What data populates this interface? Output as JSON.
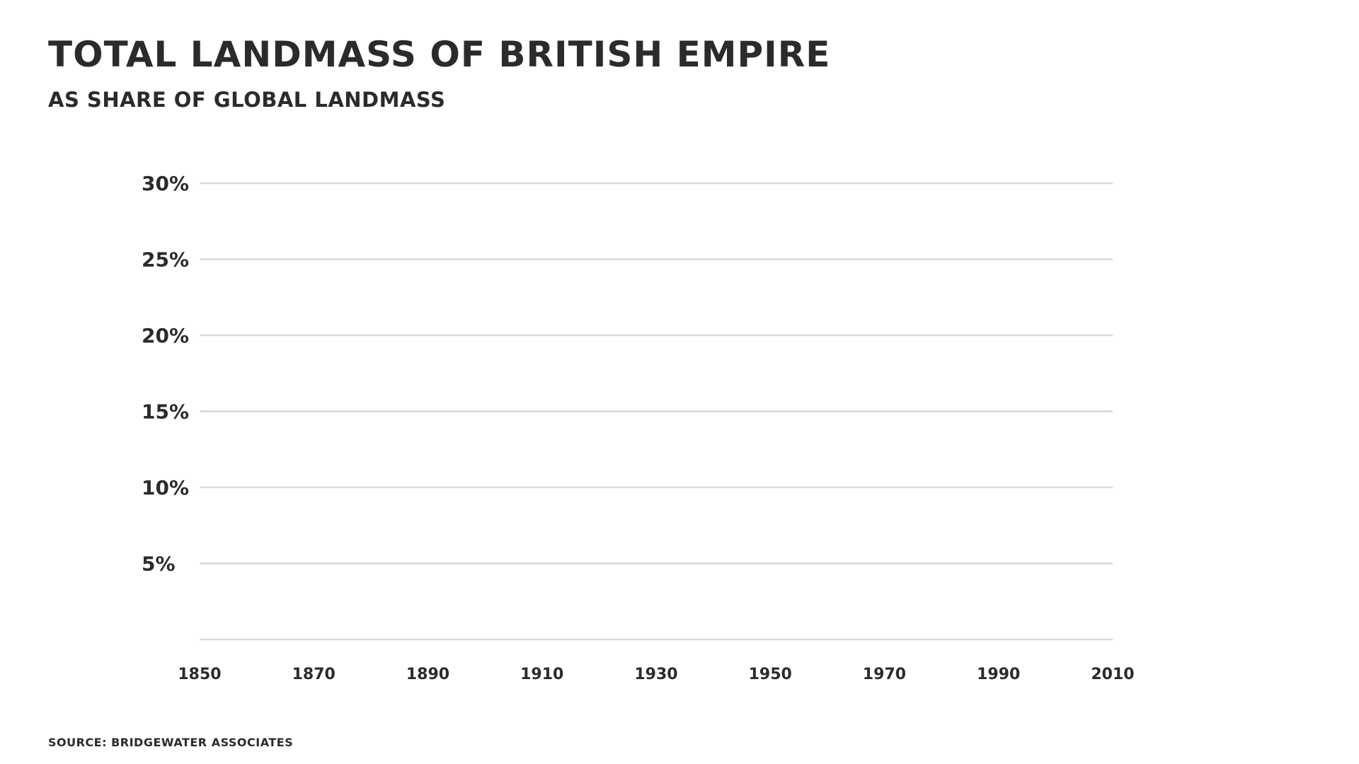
{
  "chart_data": {
    "type": "line",
    "title": "TOTAL LANDMASS OF BRITISH EMPIRE",
    "subtitle": "AS SHARE OF GLOBAL LANDMASS",
    "xlabel": "",
    "ylabel": "",
    "x_ticks": [
      "1850",
      "1870",
      "1890",
      "1910",
      "1930",
      "1950",
      "1970",
      "1990",
      "2010"
    ],
    "y_ticks": [
      {
        "value": 30,
        "label": "30%"
      },
      {
        "value": 25,
        "label": "25%"
      },
      {
        "value": 20,
        "label": "20%"
      },
      {
        "value": 15,
        "label": "15%"
      },
      {
        "value": 10,
        "label": "10%"
      },
      {
        "value": 5,
        "label": "5%"
      }
    ],
    "xlim": [
      1850,
      2010
    ],
    "ylim": [
      0,
      30
    ],
    "grid": true,
    "series": [],
    "colors": {
      "grid": "#d9d9d9",
      "text": "#2b2b2b"
    }
  },
  "source": "SOURCE: BRIDGEWATER ASSOCIATES"
}
